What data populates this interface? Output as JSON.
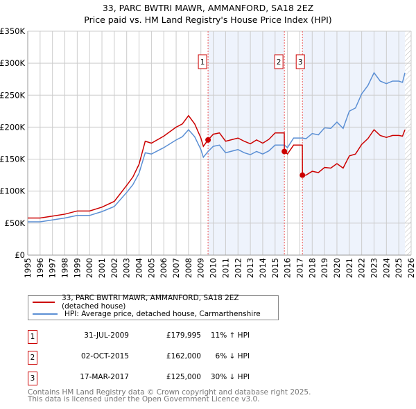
{
  "chart_data": {
    "type": "line",
    "title": "33, PARC BWTRI MAWR, AMMANFORD, SA18 2EZ",
    "subtitle": "Price paid vs. HM Land Registry's House Price Index (HPI)",
    "xlim": [
      1995,
      2026
    ],
    "ylim": [
      0,
      350000
    ],
    "y_ticks": [
      {
        "v": 0,
        "label": "£0"
      },
      {
        "v": 50000,
        "label": "£50K"
      },
      {
        "v": 100000,
        "label": "£100K"
      },
      {
        "v": 150000,
        "label": "£150K"
      },
      {
        "v": 200000,
        "label": "£200K"
      },
      {
        "v": 250000,
        "label": "£250K"
      },
      {
        "v": 300000,
        "label": "£300K"
      },
      {
        "v": 350000,
        "label": "£350K"
      }
    ],
    "x_ticks": [
      "1995",
      "1996",
      "1997",
      "1998",
      "1999",
      "2000",
      "2001",
      "2002",
      "2003",
      "2004",
      "2005",
      "2006",
      "2007",
      "2008",
      "2009",
      "2010",
      "2011",
      "2012",
      "2013",
      "2014",
      "2015",
      "2016",
      "2017",
      "2018",
      "2019",
      "2020",
      "2021",
      "2022",
      "2023",
      "2024",
      "2025",
      "2026"
    ],
    "grid": true,
    "shaded_ranges": [
      [
        2009.58,
        2015.75
      ],
      [
        2017.21,
        2025.5
      ]
    ],
    "hatched_from": 2025.5,
    "series": [
      {
        "name": "33, PARC BWTRI MAWR, AMMANFORD, SA18 2EZ (detached house)",
        "color": "#cc0000",
        "points": [
          [
            1995,
            58
          ],
          [
            1996,
            58
          ],
          [
            1997,
            61
          ],
          [
            1998,
            64
          ],
          [
            1999,
            69
          ],
          [
            2000,
            69
          ],
          [
            2001,
            75
          ],
          [
            2002,
            84
          ],
          [
            2003,
            109
          ],
          [
            2003.5,
            122
          ],
          [
            2004,
            142
          ],
          [
            2004.5,
            178
          ],
          [
            2005,
            175
          ],
          [
            2006,
            186
          ],
          [
            2007,
            200
          ],
          [
            2007.5,
            205
          ],
          [
            2008,
            218
          ],
          [
            2008.5,
            205
          ],
          [
            2009,
            183
          ],
          [
            2009.2,
            170
          ],
          [
            2009.58,
            180
          ],
          [
            2010,
            189
          ],
          [
            2010.5,
            191
          ],
          [
            2011,
            178
          ],
          [
            2012,
            183
          ],
          [
            2012.5,
            178
          ],
          [
            2013,
            174
          ],
          [
            2013.5,
            180
          ],
          [
            2014,
            175
          ],
          [
            2014.5,
            181
          ],
          [
            2015,
            191
          ],
          [
            2015.74,
            191
          ],
          [
            2015.75,
            162
          ],
          [
            2016,
            158
          ],
          [
            2016.5,
            172
          ],
          [
            2017.2,
            172
          ],
          [
            2017.21,
            125
          ],
          [
            2017.5,
            125
          ],
          [
            2018,
            131
          ],
          [
            2018.5,
            129
          ],
          [
            2019,
            137
          ],
          [
            2019.5,
            136
          ],
          [
            2020,
            143
          ],
          [
            2020.5,
            136
          ],
          [
            2021,
            155
          ],
          [
            2021.5,
            158
          ],
          [
            2022,
            173
          ],
          [
            2022.5,
            182
          ],
          [
            2023,
            196
          ],
          [
            2023.5,
            187
          ],
          [
            2024,
            184
          ],
          [
            2024.5,
            187
          ],
          [
            2025,
            187
          ],
          [
            2025.3,
            186
          ],
          [
            2025.5,
            196
          ]
        ]
      },
      {
        "name": "HPI: Average price, detached house, Carmarthenshire",
        "color": "#5b8fd4",
        "points": [
          [
            1995,
            52
          ],
          [
            1996,
            52
          ],
          [
            1997,
            55
          ],
          [
            1998,
            58
          ],
          [
            1999,
            62
          ],
          [
            2000,
            62
          ],
          [
            2001,
            68
          ],
          [
            2002,
            76
          ],
          [
            2003,
            98
          ],
          [
            2003.5,
            110
          ],
          [
            2004,
            128
          ],
          [
            2004.5,
            160
          ],
          [
            2005,
            158
          ],
          [
            2006,
            168
          ],
          [
            2007,
            180
          ],
          [
            2007.5,
            185
          ],
          [
            2008,
            196
          ],
          [
            2008.5,
            185
          ],
          [
            2009,
            165
          ],
          [
            2009.2,
            153
          ],
          [
            2009.58,
            162
          ],
          [
            2010,
            170
          ],
          [
            2010.5,
            172
          ],
          [
            2011,
            160
          ],
          [
            2012,
            165
          ],
          [
            2012.5,
            160
          ],
          [
            2013,
            157
          ],
          [
            2013.5,
            162
          ],
          [
            2014,
            158
          ],
          [
            2014.5,
            163
          ],
          [
            2015,
            172
          ],
          [
            2015.75,
            172
          ],
          [
            2016,
            168
          ],
          [
            2016.5,
            183
          ],
          [
            2017.2,
            183
          ],
          [
            2017.5,
            182
          ],
          [
            2018,
            190
          ],
          [
            2018.5,
            188
          ],
          [
            2019,
            199
          ],
          [
            2019.5,
            198
          ],
          [
            2020,
            208
          ],
          [
            2020.5,
            198
          ],
          [
            2021,
            225
          ],
          [
            2021.5,
            230
          ],
          [
            2022,
            252
          ],
          [
            2022.5,
            265
          ],
          [
            2023,
            285
          ],
          [
            2023.5,
            272
          ],
          [
            2024,
            268
          ],
          [
            2024.5,
            272
          ],
          [
            2025,
            272
          ],
          [
            2025.3,
            270
          ],
          [
            2025.5,
            285
          ]
        ]
      }
    ],
    "y_units": "thousands GBP",
    "sales": [
      {
        "n": "1",
        "x": 2009.58,
        "y": 179995
      },
      {
        "n": "2",
        "x": 2015.75,
        "y": 162000
      },
      {
        "n": "3",
        "x": 2017.21,
        "y": 125000
      }
    ]
  },
  "legend": {
    "red": "33, PARC BWTRI MAWR, AMMANFORD, SA18 2EZ (detached house)",
    "blue": "HPI: Average price, detached house, Carmarthenshire"
  },
  "transactions": [
    {
      "n": "1",
      "date": "31-JUL-2009",
      "price": "£179,995",
      "hpi": "11% ↑ HPI"
    },
    {
      "n": "2",
      "date": "02-OCT-2015",
      "price": "£162,000",
      "hpi": "6% ↓ HPI"
    },
    {
      "n": "3",
      "date": "17-MAR-2017",
      "price": "£125,000",
      "hpi": "30% ↓ HPI"
    }
  ],
  "footer": {
    "line1": "Contains HM Land Registry data © Crown copyright and database right 2025.",
    "line2": "This data is licensed under the Open Government Licence v3.0."
  }
}
